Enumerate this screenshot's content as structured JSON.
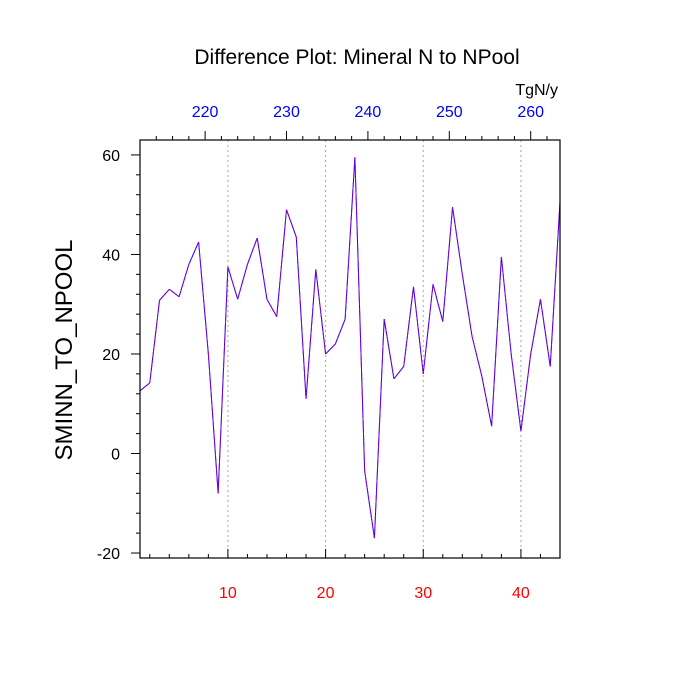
{
  "chart_data": {
    "type": "line",
    "title": "Difference Plot: Mineral N to NPool",
    "ylabel": "SMINN_TO_NPOOL",
    "xlabel": "",
    "top_axis_unit": "TgN/y",
    "xlim": [
      1,
      44
    ],
    "ylim": [
      -21,
      63
    ],
    "x_ticks": [
      10,
      20,
      30,
      40
    ],
    "y_ticks": [
      -20,
      0,
      20,
      40,
      60
    ],
    "top_xlim": [
      212,
      263.6
    ],
    "top_ticks": [
      220,
      230,
      240,
      250,
      260
    ],
    "grid": "vertical dotted at x ticks",
    "colors": {
      "bottom_axis": "#ff0000",
      "top_axis": "#0000ff",
      "line": "#8a2be2",
      "grid": "#aaaaaa"
    },
    "series": [
      {
        "x": [
          1,
          2,
          3,
          4,
          5,
          6,
          7,
          8,
          9,
          10,
          11,
          12,
          13,
          14,
          15,
          16,
          17,
          18,
          19,
          20,
          21,
          22,
          23,
          24,
          25,
          26,
          27,
          28,
          29,
          30,
          31,
          32,
          33,
          34,
          35,
          36,
          37,
          38,
          39,
          40,
          41,
          42,
          43,
          44
        ],
        "values": [
          12.6,
          14.2,
          30.8,
          33,
          31.5,
          38,
          42.5,
          20,
          -8,
          37.5,
          31,
          38,
          43.3,
          31,
          27.5,
          49,
          43.5,
          11,
          37,
          20,
          22,
          27,
          59.5,
          -3.5,
          -17,
          27,
          15,
          17.5,
          33.5,
          16,
          34,
          26.5,
          49.5,
          36,
          23.5,
          15.5,
          5.5,
          39.5,
          20,
          4.5,
          20,
          31,
          17.5,
          50.5
        ]
      }
    ]
  }
}
